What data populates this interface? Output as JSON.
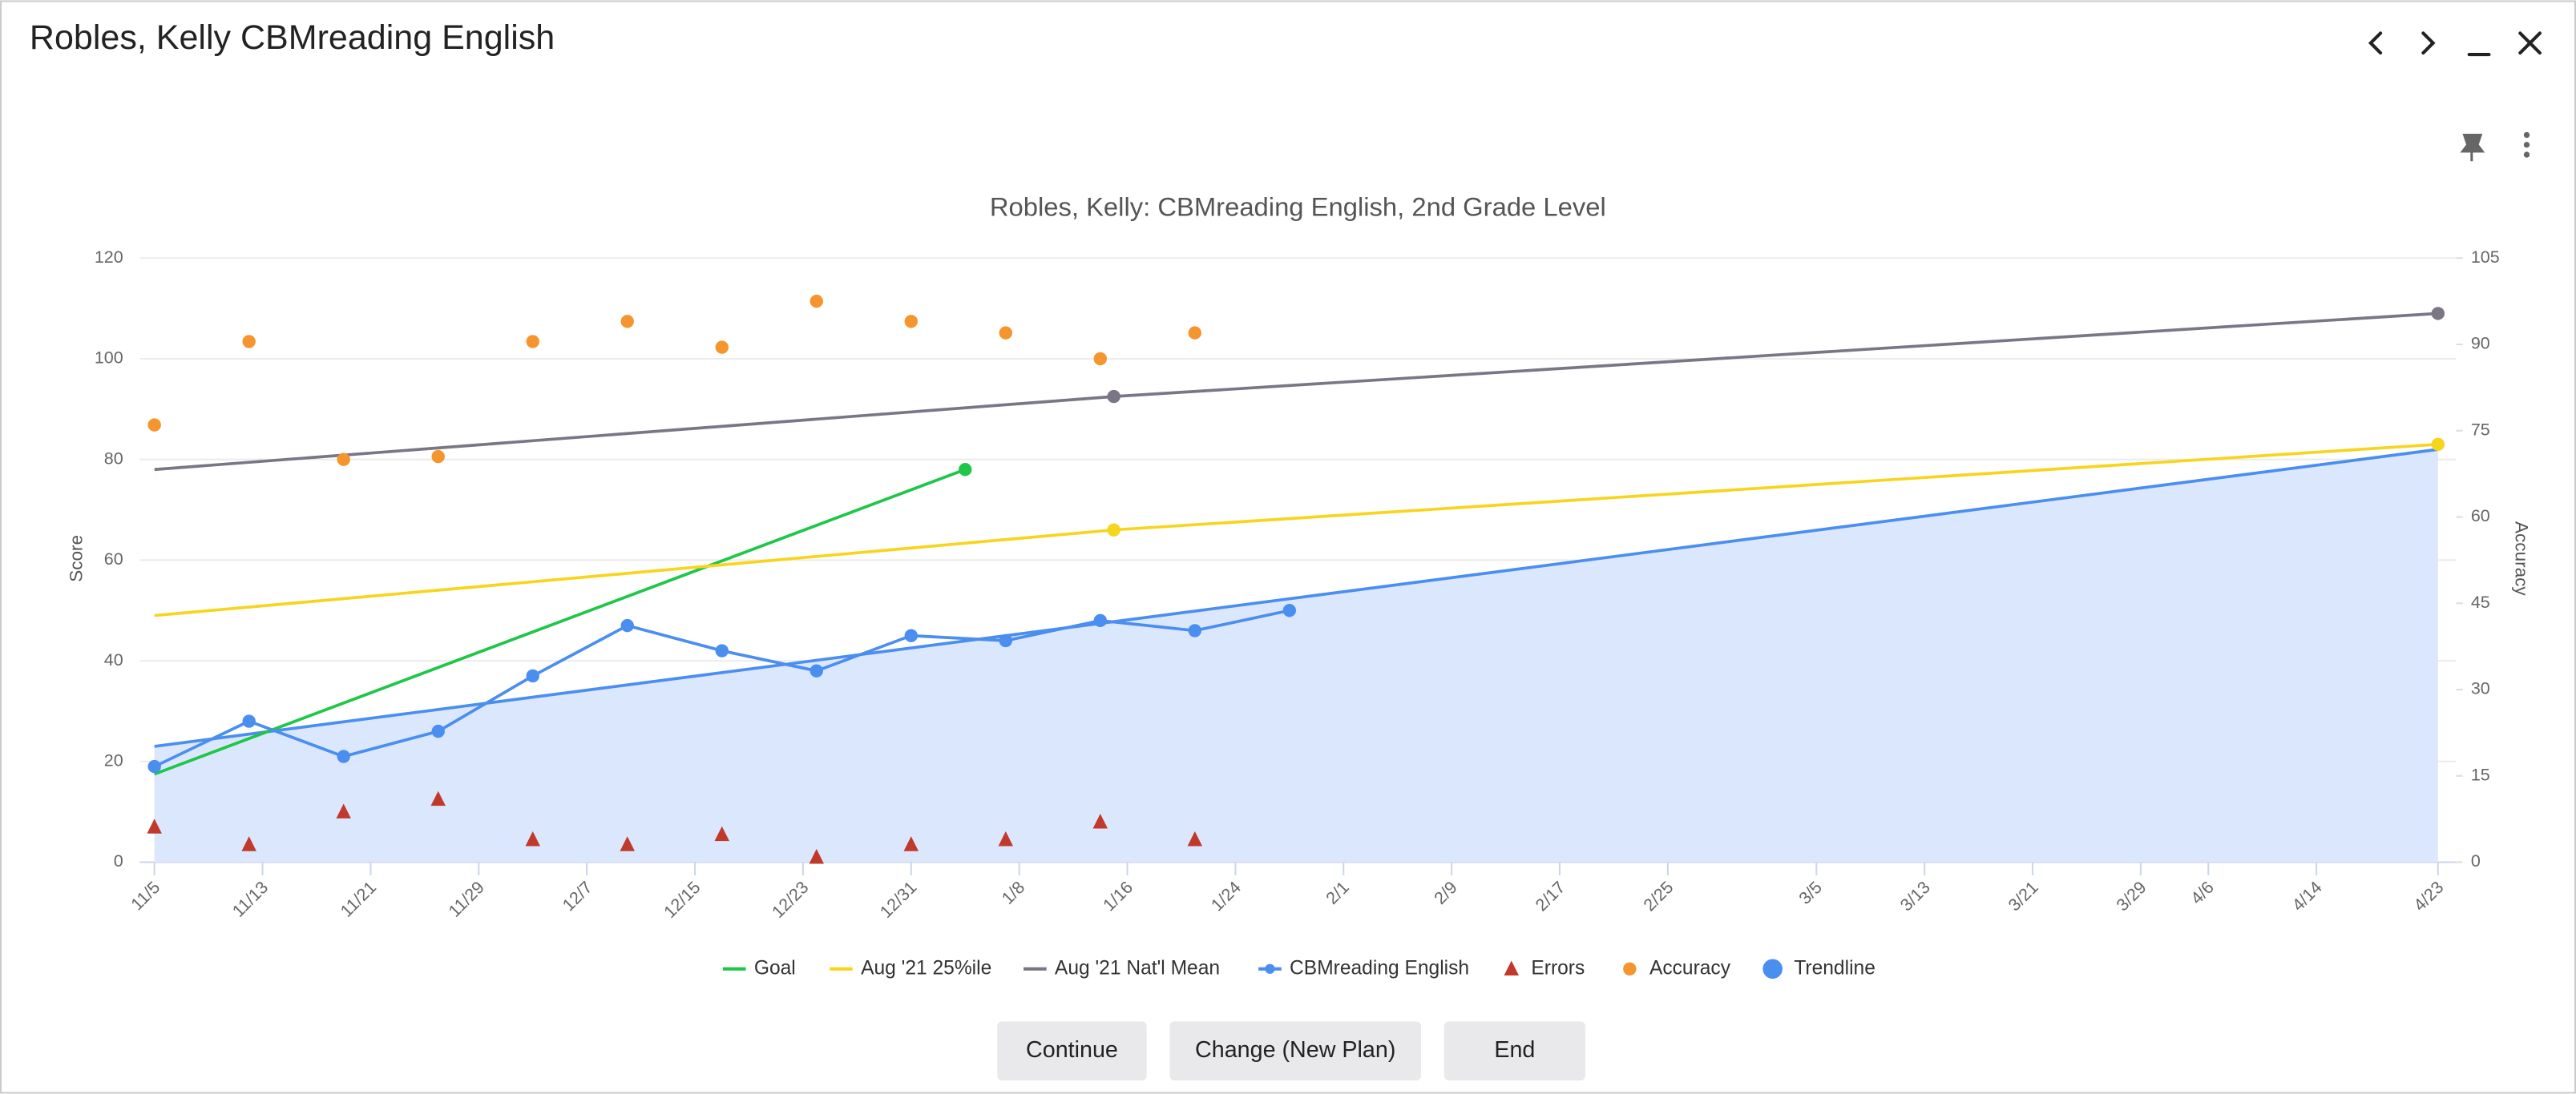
{
  "header": {
    "title": "Robles, Kelly CBMreading English"
  },
  "buttons": [
    "Continue",
    "Change (New Plan)",
    "End"
  ],
  "chart_data": {
    "type": "line",
    "title": "Robles, Kelly: CBMreading English, 2nd Grade Level",
    "ylabel": "Score",
    "y2label": "Accuracy",
    "xlim": [
      "11/5",
      "4/23"
    ],
    "xticks": [
      "11/5",
      "11/13",
      "11/21",
      "11/29",
      "12/7",
      "12/15",
      "12/23",
      "12/31",
      "1/8",
      "1/16",
      "1/24",
      "2/1",
      "2/9",
      "2/17",
      "2/25",
      "3/5",
      "3/13",
      "3/21",
      "3/29",
      "4/6",
      "4/14",
      "4/23"
    ],
    "ylim": [
      0,
      120
    ],
    "yticks": [
      0,
      20,
      40,
      60,
      80,
      100,
      120
    ],
    "y2lim": [
      0,
      105
    ],
    "y2ticks": [
      0,
      15,
      30,
      45,
      60,
      75,
      90,
      105
    ],
    "grid": true,
    "series": [
      {
        "name": "Goal",
        "color": "#1fc64a",
        "style": "line",
        "x": [
          "11/5",
          "1/4"
        ],
        "values": [
          17.5,
          78
        ]
      },
      {
        "name": "Aug '21 25%ile",
        "color": "#f7d51d",
        "style": "line",
        "x": [
          "11/5",
          "1/15",
          "4/23"
        ],
        "values": [
          49,
          66,
          83
        ]
      },
      {
        "name": "Aug '21 Nat'l Mean",
        "color": "#7a7686",
        "style": "line",
        "x": [
          "11/5",
          "1/15",
          "4/23"
        ],
        "values": [
          78,
          92.5,
          109
        ]
      },
      {
        "name": "CBMreading English",
        "color": "#4a8ef0",
        "style": "line-markers",
        "x": [
          "11/5",
          "11/12",
          "11/19",
          "11/26",
          "12/3",
          "12/10",
          "12/17",
          "12/24",
          "12/31",
          "1/7",
          "1/14",
          "1/21",
          "1/28"
        ],
        "values": [
          19,
          28,
          21,
          26,
          37,
          47,
          42,
          38,
          45,
          44,
          48,
          46,
          50
        ]
      },
      {
        "name": "Errors",
        "color": "#c0392b",
        "style": "triangles",
        "x": [
          "11/5",
          "11/12",
          "11/19",
          "11/26",
          "12/3",
          "12/10",
          "12/17",
          "12/24",
          "12/31",
          "1/7",
          "1/14",
          "1/21"
        ],
        "values": [
          7,
          3.5,
          10,
          12.5,
          4.5,
          3.5,
          5.5,
          1,
          3.5,
          4.5,
          8,
          4.5
        ]
      },
      {
        "name": "Accuracy",
        "color": "#f5952e",
        "style": "points",
        "axis": "y2",
        "x": [
          "11/5",
          "11/12",
          "11/19",
          "11/26",
          "12/3",
          "12/10",
          "12/17",
          "12/24",
          "12/31",
          "1/7",
          "1/14",
          "1/21"
        ],
        "values": [
          76,
          90.5,
          70,
          70.5,
          90.5,
          94,
          89.5,
          97.5,
          94,
          92,
          87.5,
          92
        ]
      },
      {
        "name": "Trendline",
        "color": "#4a8ef0",
        "style": "area",
        "x": [
          "11/5",
          "4/23"
        ],
        "values": [
          23,
          82
        ]
      }
    ]
  }
}
